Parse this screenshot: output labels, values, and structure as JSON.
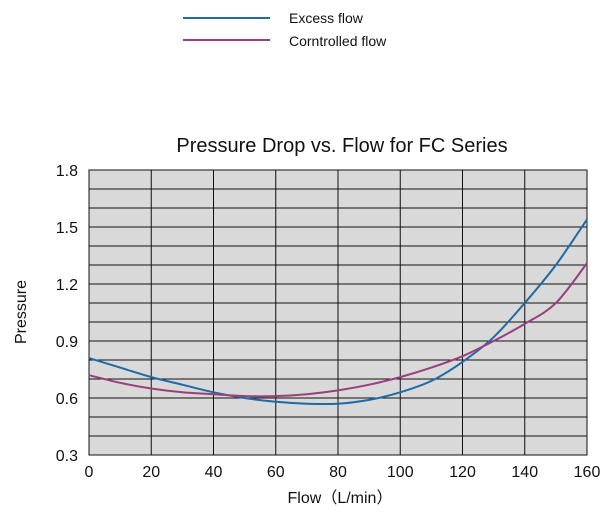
{
  "chart_data": {
    "type": "line",
    "title": "Pressure Drop vs. Flow for FC Series",
    "xlabel": "Flow（L/min）",
    "ylabel": "Pressure",
    "xlim": [
      0,
      160
    ],
    "ylim": [
      0.3,
      1.8
    ],
    "xticks": [
      0,
      20,
      40,
      60,
      80,
      100,
      120,
      140,
      160
    ],
    "xtick_labels": [
      "0",
      "20",
      "40",
      "60",
      "80",
      "100",
      "120",
      "140",
      "160"
    ],
    "yticks": [
      0.3,
      0.6,
      0.9,
      1.2,
      1.5,
      1.8
    ],
    "ytick_labels": [
      "0.3",
      "0.6",
      "0.9",
      "1.2",
      "1.5",
      "1.8"
    ],
    "grid": true,
    "plot_background": "#d9d9d9",
    "legend_position": "top",
    "series": [
      {
        "name": "Excess flow",
        "color": "#1f6aa5",
        "x": [
          0,
          10,
          20,
          30,
          40,
          50,
          60,
          70,
          80,
          90,
          100,
          110,
          120,
          130,
          140,
          150,
          160
        ],
        "y": [
          0.81,
          0.76,
          0.71,
          0.67,
          0.63,
          0.6,
          0.58,
          0.57,
          0.57,
          0.59,
          0.63,
          0.69,
          0.79,
          0.92,
          1.1,
          1.3,
          1.54
        ]
      },
      {
        "name": "Corntrolled flow",
        "color": "#9a3f7c",
        "x": [
          0,
          10,
          20,
          30,
          40,
          50,
          60,
          70,
          80,
          90,
          100,
          110,
          120,
          130,
          140,
          150,
          160
        ],
        "y": [
          0.72,
          0.68,
          0.65,
          0.63,
          0.62,
          0.61,
          0.61,
          0.62,
          0.64,
          0.67,
          0.71,
          0.76,
          0.82,
          0.9,
          0.99,
          1.1,
          1.31
        ]
      }
    ]
  }
}
